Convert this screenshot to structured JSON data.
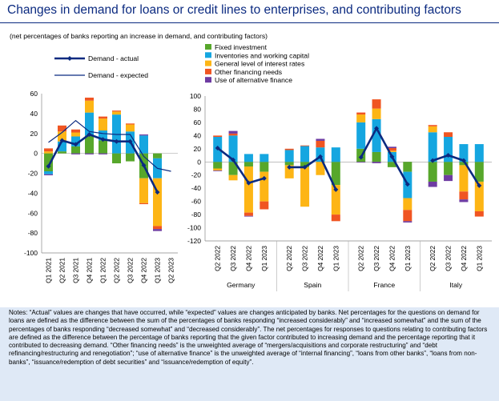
{
  "header": {
    "title": "Changes in demand for loans or credit lines to enterprises, and contributing factors",
    "subtitle": "(net percentages of banks reporting an increase in demand, and contributing factors)"
  },
  "notes": "Notes: “Actual” values are changes that have occurred, while “expected” values are changes anticipated by banks. Net percentages for the questions on demand for loans are defined as the difference between the sum of the percentages of banks responding “increased considerably” and “increased somewhat” and the sum of the percentages of banks responding “decreased somewhat” and “decreased considerably”. The net percentages for responses to questions relating to contributing factors are defined as the difference between the percentage of banks reporting that the given factor contributed to increasing demand and the percentage reporting that it contributed to decreasing demand. “Other financing needs” is the unweighted average of “mergers/acquisitions and corporate restructuring” and “debt refinancing/restructuring and renegotiation”; “use of alternative finance” is the unweighted average of “internal financing”, “loans from other banks”, “loans from non-banks”, “issuance/redemption of debt securities” and “issuance/redemption of equity”.",
  "colors": {
    "actual": "#0b2a80",
    "expected": "#0b2a80",
    "fixed_investment": "#57a72b",
    "inventories": "#15a6e0",
    "interest_rates": "#fdb515",
    "other_financing": "#f05522",
    "alternative_finance": "#6e3ba2"
  },
  "chart_data": [
    {
      "type": "bar",
      "stacked": true,
      "panel": "Euro area",
      "categories": [
        "Q1 2021",
        "Q2 2021",
        "Q3 2021",
        "Q4 2021",
        "Q1 2022",
        "Q2 2022",
        "Q3 2022",
        "Q4 2022",
        "Q1 2023",
        "Q2 2023"
      ],
      "ylim": [
        -100,
        60
      ],
      "yticks": [
        -100,
        -80,
        -60,
        -40,
        -20,
        0,
        20,
        40,
        60
      ],
      "legend": [
        {
          "key": "actual",
          "label": "Demand - actual",
          "kind": "thick-line-marker"
        },
        {
          "key": "expected",
          "label": "Demand - expected",
          "kind": "thin-line"
        }
      ],
      "series": [
        {
          "name": "Fixed investment",
          "key": "fixed_investment",
          "values": [
            -18,
            2,
            7,
            18,
            13,
            -10,
            -8,
            -25,
            -5,
            null
          ]
        },
        {
          "name": "Inventories and working capital",
          "key": "inventories",
          "values": [
            -3,
            10,
            10,
            23,
            10,
            39,
            22,
            18,
            -20,
            null
          ]
        },
        {
          "name": "General level of interest rates",
          "key": "interest_rates",
          "values": [
            2,
            10,
            4,
            12,
            12,
            3,
            7,
            -25,
            -48,
            null
          ]
        },
        {
          "name": "Other financing needs",
          "key": "other_financing",
          "values": [
            3,
            6,
            3,
            3,
            2,
            1,
            1,
            -1,
            -3,
            null
          ]
        },
        {
          "name": "Use of alternative finance",
          "key": "alternative_finance",
          "values": [
            -1,
            0,
            -1,
            -1,
            -1,
            0,
            0,
            1,
            -2,
            null
          ]
        }
      ],
      "lines": [
        {
          "name": "Demand - actual",
          "key": "actual",
          "values": [
            -13,
            13,
            9,
            19,
            14,
            12,
            12,
            -12,
            -39,
            null
          ]
        },
        {
          "name": "Demand - expected",
          "key": "expected",
          "values": [
            11,
            21,
            33,
            22,
            20,
            19,
            19,
            -3,
            -15,
            -18
          ]
        }
      ]
    },
    {
      "type": "bar",
      "stacked": true,
      "panel": "Countries",
      "groups": [
        {
          "name": "Germany",
          "categories": [
            "Q2 2022",
            "Q3 2022",
            "Q4 2022",
            "Q1 2023"
          ]
        },
        {
          "name": "Spain",
          "categories": [
            "Q2 2022",
            "Q3 2022",
            "Q4 2022",
            "Q1 2023"
          ]
        },
        {
          "name": "France",
          "categories": [
            "Q2 2022",
            "Q3 2022",
            "Q4 2022",
            "Q1 2023"
          ]
        },
        {
          "name": "Italy",
          "categories": [
            "Q2 2022",
            "Q3 2022",
            "Q4 2022",
            "Q1 2023"
          ]
        }
      ],
      "ylim": [
        -120,
        100
      ],
      "yticks": [
        -120,
        -100,
        -80,
        -60,
        -40,
        -20,
        0,
        20,
        40,
        60,
        80,
        100
      ],
      "legend": [
        {
          "key": "fixed_investment",
          "label": "Fixed investment"
        },
        {
          "key": "inventories",
          "label": "Inventories and working capital"
        },
        {
          "key": "interest_rates",
          "label": "General level of interest rates"
        },
        {
          "key": "other_financing",
          "label": "Other financing needs"
        },
        {
          "key": "alternative_finance",
          "label": "Use of alternative finance"
        }
      ],
      "series": [
        {
          "name": "Fixed investment",
          "key": "fixed_investment",
          "values": [
            -10,
            -20,
            -7,
            -15,
            -5,
            -8,
            0,
            -35,
            20,
            15,
            -8,
            -15,
            -30,
            -20,
            -5,
            -30
          ]
        },
        {
          "name": "Inventories and working capital",
          "key": "inventories",
          "values": [
            38,
            40,
            12,
            12,
            18,
            24,
            22,
            22,
            40,
            50,
            15,
            -40,
            45,
            38,
            27,
            27
          ]
        },
        {
          "name": "General level of interest rates",
          "key": "interest_rates",
          "values": [
            -3,
            -8,
            -70,
            -45,
            -20,
            -60,
            -20,
            -45,
            12,
            16,
            2,
            -18,
            9,
            0,
            -40,
            -45
          ]
        },
        {
          "name": "Other financing needs",
          "key": "other_financing",
          "values": [
            2,
            3,
            -5,
            -12,
            2,
            1,
            10,
            -10,
            3,
            14,
            4,
            -17,
            2,
            7,
            -12,
            -8
          ]
        },
        {
          "name": "Use of alternative finance",
          "key": "alternative_finance",
          "values": [
            -1,
            4,
            -1,
            0,
            0,
            0,
            3,
            0,
            -1,
            -2,
            2,
            -2,
            -8,
            -9,
            -4,
            0
          ]
        }
      ],
      "lines": [
        {
          "name": "Demand - actual",
          "key": "actual",
          "values": [
            21,
            3,
            -32,
            -25,
            -8,
            -8,
            8,
            -42,
            7,
            51,
            8,
            -34,
            2,
            10,
            2,
            -36
          ]
        }
      ]
    }
  ]
}
